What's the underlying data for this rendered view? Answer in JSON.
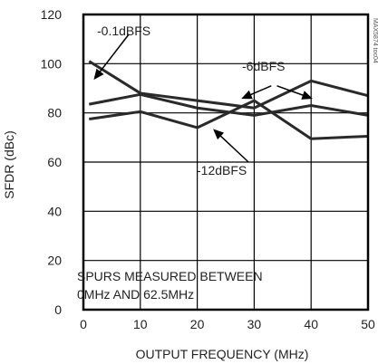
{
  "chart_data": {
    "type": "line",
    "xlabel": "OUTPUT FREQUENCY (MHz)",
    "ylabel": "SFDR (dBc)",
    "xlim": [
      0,
      50
    ],
    "ylim": [
      0,
      120
    ],
    "x_ticks": [
      0,
      10,
      20,
      30,
      40,
      50
    ],
    "y_ticks": [
      0,
      20,
      40,
      60,
      80,
      100,
      120
    ],
    "grid": true,
    "legend": "none",
    "series": [
      {
        "name": "-0.1dBFS",
        "x": [
          1,
          10,
          20,
          30,
          40,
          50
        ],
        "y": [
          101,
          88,
          85,
          82,
          93,
          87
        ]
      },
      {
        "name": "-6dBFS",
        "x": [
          1,
          10,
          20,
          30,
          40,
          50
        ],
        "y": [
          83.5,
          87.5,
          82,
          79,
          83,
          79
        ]
      },
      {
        "name": "-12dBFS",
        "x": [
          1,
          10,
          20,
          30,
          40,
          50
        ],
        "y": [
          77.5,
          80.5,
          74,
          85,
          69.5,
          70.5
        ]
      }
    ],
    "labels": {
      "s0": "-0.1dBFS",
      "s1": "-6dBFS",
      "s2": "-12dBFS",
      "note_line1": "SPURS MEASURED BETWEEN",
      "note_line2": "0MHz AND 62.5MHz",
      "side_id": "MAX5874 toc04"
    }
  }
}
